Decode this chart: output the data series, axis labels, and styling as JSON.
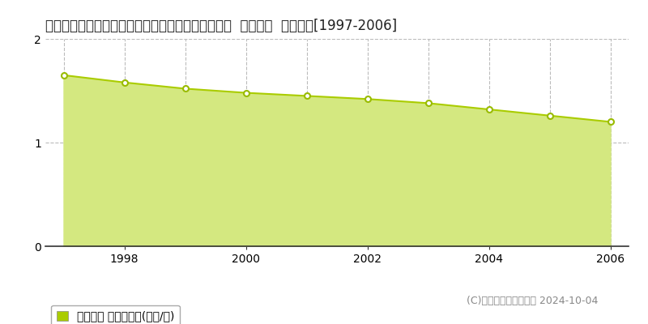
{
  "title": "青森県東津軽郡今別町大字袰月字袰村元６８番４外  基準地価  地価推移[1997-2006]",
  "years": [
    1997,
    1998,
    1999,
    2000,
    2001,
    2002,
    2003,
    2004,
    2005,
    2006
  ],
  "values": [
    1.65,
    1.58,
    1.52,
    1.48,
    1.45,
    1.42,
    1.38,
    1.32,
    1.26,
    1.2
  ],
  "ylim": [
    0,
    2
  ],
  "yticks": [
    0,
    1,
    2
  ],
  "xticks": [
    1998,
    2000,
    2002,
    2004,
    2006
  ],
  "line_color": "#aacc00",
  "fill_color": "#d4e880",
  "marker_face": "#ffffff",
  "marker_edge": "#99bb00",
  "grid_color": "#bbbbbb",
  "bg_color": "#ffffff",
  "legend_label": "基準地価 平均坪単価(万円/坪)",
  "copyright_text": "(C)土地価格ドットコム 2024-10-04",
  "title_fontsize": 12,
  "tick_fontsize": 10,
  "legend_fontsize": 10,
  "copyright_fontsize": 9,
  "xlim_left": 1996.7,
  "xlim_right": 2006.3
}
